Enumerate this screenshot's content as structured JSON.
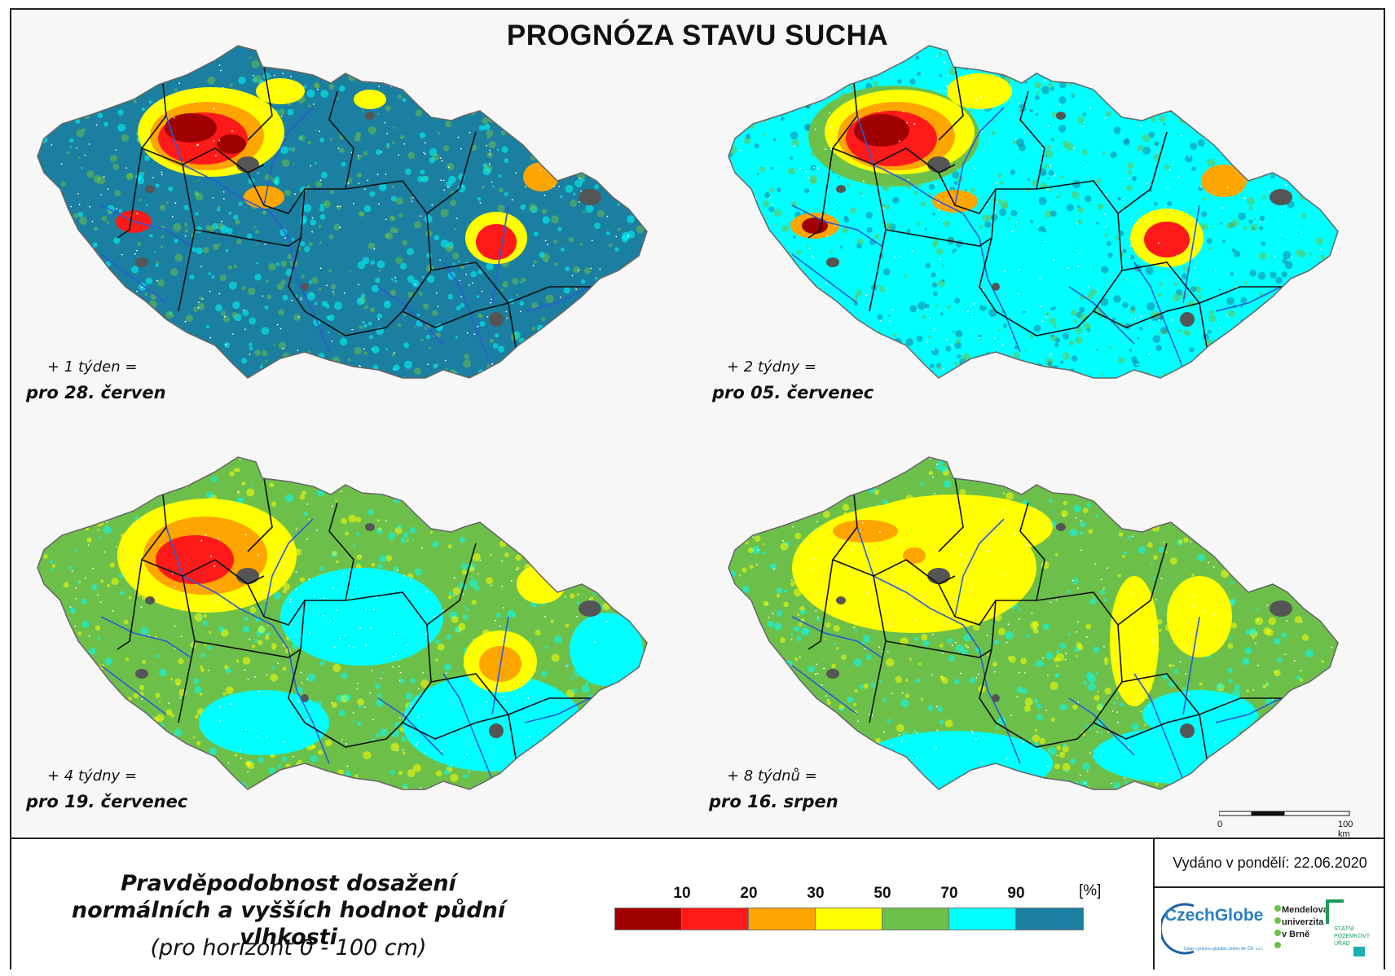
{
  "title": "PROGNÓZA STAVU SUCHA",
  "colors": {
    "class_0_10": "#a00000",
    "class_10_20": "#ff1a1a",
    "class_20_30": "#ffa500",
    "class_30_50": "#ffff00",
    "class_50_70": "#6cc04a",
    "class_70_90": "#00ffff",
    "class_90_100": "#1a7fa0",
    "city": "#555555",
    "river": "#2a5bd7",
    "border": "#111111"
  },
  "maps": [
    {
      "line1": "+ 1 týden =",
      "line2": "pro 28. červen",
      "dominant": "class_90_100",
      "hotspots": [
        "class_0_10",
        "class_10_20",
        "class_20_30",
        "class_30_50"
      ]
    },
    {
      "line1": "+ 2 týdny =",
      "line2": "pro 05. červenec",
      "dominant": "class_70_90",
      "hotspots": [
        "class_0_10",
        "class_10_20",
        "class_20_30",
        "class_30_50"
      ]
    },
    {
      "line1": "+ 4 týdny =",
      "line2": "pro 19. červenec",
      "dominant": "class_50_70",
      "hotspots": [
        "class_10_20",
        "class_20_30",
        "class_30_50",
        "class_70_90"
      ]
    },
    {
      "line1": "+ 8 týdnů =",
      "line2": "pro 16. srpen",
      "dominant": "class_50_70",
      "hotspots": [
        "class_30_50",
        "class_20_30",
        "class_70_90"
      ]
    }
  ],
  "scale_bar": {
    "start": "0",
    "end": "100 km"
  },
  "legend": {
    "title_line1": "Pravděpodobnost dosažení",
    "title_line2": "normálních a vyšších hodnot půdní vlhkosti",
    "subtitle": "(pro horizont 0 - 100 cm)",
    "unit": "[%]",
    "breaks": [
      "10",
      "20",
      "30",
      "50",
      "70",
      "90"
    ],
    "classes": [
      "class_0_10",
      "class_10_20",
      "class_20_30",
      "class_30_50",
      "class_50_70",
      "class_70_90",
      "class_90_100"
    ]
  },
  "issued": "Vydáno v pondělí: 22.06.2020",
  "logos": {
    "czechglobe": "CzechGlobe",
    "czechglobe_sub": "Ústav výzkumu globální změny AV ČR, v.v.i.",
    "mendelu_line1": "Mendelova",
    "mendelu_line2": "univerzita",
    "mendelu_line3": "v Brně",
    "spu_line1": "STÁTNÍ",
    "spu_line2": "POZEMKOVÝ",
    "spu_line3": "ÚŘAD"
  }
}
